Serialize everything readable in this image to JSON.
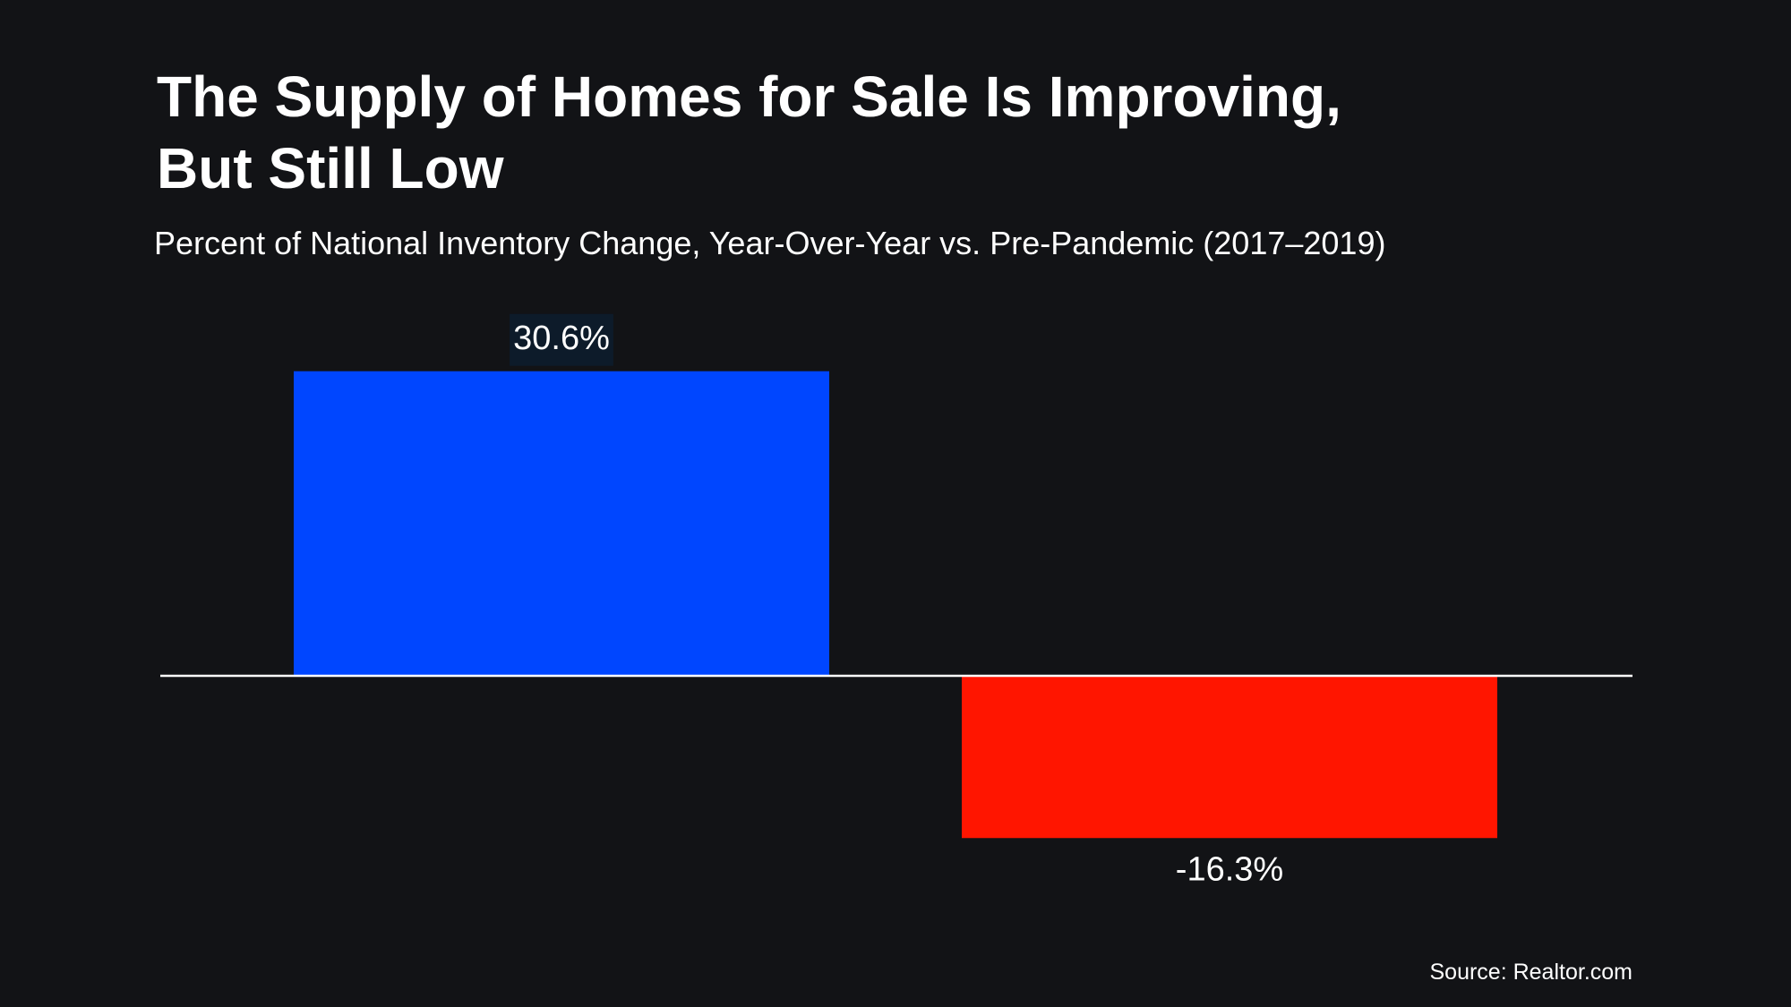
{
  "chart_data": {
    "type": "bar",
    "title": [
      "The Supply of Homes for Sale Is Improving,",
      "But Still Low"
    ],
    "subtitle": "Percent of National Inventory Change, Year-Over-Year vs. Pre-Pandemic (2017–2019)",
    "categories": [
      null,
      null
    ],
    "values": [
      30.6,
      -16.3
    ],
    "value_labels": [
      "30.6%",
      "-16.3%"
    ],
    "colors": [
      "#0046ff",
      "#ff1500"
    ],
    "source": "Source: Realtor.com"
  }
}
